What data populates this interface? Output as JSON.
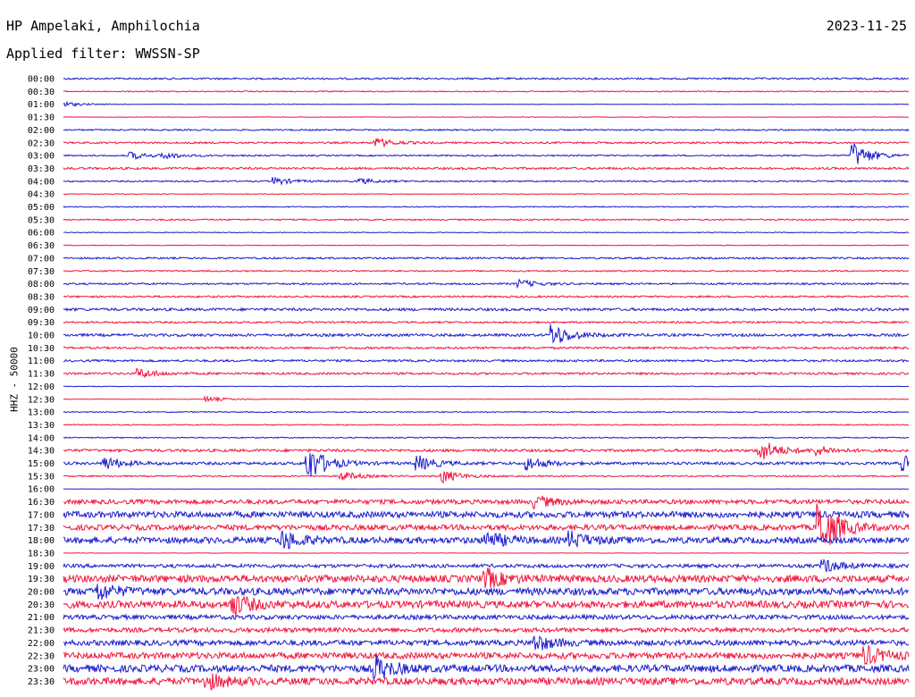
{
  "header": {
    "station": "HP Ampelaki, Amphilochia",
    "date": "2023-11-25",
    "filter": "Applied filter: WWSSN-SP"
  },
  "colors": {
    "trace_a": "#1a1acc",
    "trace_b": "#f0153d"
  },
  "chart_data": {
    "type": "line",
    "subtype": "helicorder",
    "ylabel": "HHZ - 50000",
    "row_labels": [
      "00:00",
      "00:30",
      "01:00",
      "01:30",
      "02:00",
      "02:30",
      "03:00",
      "03:30",
      "04:00",
      "04:30",
      "05:00",
      "05:30",
      "06:00",
      "06:30",
      "07:00",
      "07:30",
      "08:00",
      "08:30",
      "09:00",
      "09:30",
      "10:00",
      "10:30",
      "11:00",
      "11:30",
      "12:00",
      "12:30",
      "13:00",
      "13:30",
      "14:00",
      "14:30",
      "15:00",
      "15:30",
      "16:00",
      "16:30",
      "17:00",
      "17:30",
      "18:00",
      "18:30",
      "19:00",
      "19:30",
      "20:00",
      "20:30",
      "21:00",
      "21:30",
      "22:00",
      "22:30",
      "23:00",
      "23:30"
    ],
    "noise_level": [
      1,
      0.6,
      0.3,
      0.3,
      0.8,
      1,
      0.8,
      1.2,
      0.8,
      0.4,
      0.6,
      0.8,
      0.4,
      0.4,
      1,
      0.8,
      1,
      1,
      1.5,
      1,
      1.5,
      1.2,
      1.2,
      1.2,
      0.3,
      0.3,
      0.6,
      0.6,
      0.6,
      1.5,
      1.5,
      0.8,
      0.2,
      2.5,
      3.5,
      3,
      3.5,
      0.2,
      2,
      4,
      4,
      4,
      2.5,
      2.5,
      3,
      3.5,
      4,
      4
    ],
    "events": [
      {
        "row": 2,
        "pos": 0.0,
        "amp": 3
      },
      {
        "row": 5,
        "pos": 0.37,
        "amp": 5
      },
      {
        "row": 6,
        "pos": 0.08,
        "amp": 4
      },
      {
        "row": 6,
        "pos": 0.12,
        "amp": 3
      },
      {
        "row": 6,
        "pos": 0.935,
        "amp": 14
      },
      {
        "row": 8,
        "pos": 0.25,
        "amp": 4
      },
      {
        "row": 8,
        "pos": 0.35,
        "amp": 3
      },
      {
        "row": 16,
        "pos": 0.54,
        "amp": 4
      },
      {
        "row": 20,
        "pos": 0.58,
        "amp": 12
      },
      {
        "row": 23,
        "pos": 0.09,
        "amp": 5
      },
      {
        "row": 25,
        "pos": 0.17,
        "amp": 3
      },
      {
        "row": 29,
        "pos": 0.825,
        "amp": 12
      },
      {
        "row": 29,
        "pos": 0.89,
        "amp": 5
      },
      {
        "row": 30,
        "pos": 0.05,
        "amp": 7
      },
      {
        "row": 30,
        "pos": 0.29,
        "amp": 20
      },
      {
        "row": 30,
        "pos": 0.42,
        "amp": 8
      },
      {
        "row": 30,
        "pos": 0.55,
        "amp": 7
      },
      {
        "row": 30,
        "pos": 0.995,
        "amp": 8
      },
      {
        "row": 31,
        "pos": 0.33,
        "amp": 5
      },
      {
        "row": 31,
        "pos": 0.45,
        "amp": 7
      },
      {
        "row": 33,
        "pos": 0.56,
        "amp": 6
      },
      {
        "row": 35,
        "pos": 0.895,
        "amp": 30
      },
      {
        "row": 36,
        "pos": 0.26,
        "amp": 10
      },
      {
        "row": 36,
        "pos": 0.5,
        "amp": 9
      },
      {
        "row": 36,
        "pos": 0.6,
        "amp": 8
      },
      {
        "row": 38,
        "pos": 0.9,
        "amp": 7
      },
      {
        "row": 39,
        "pos": 0.5,
        "amp": 10
      },
      {
        "row": 40,
        "pos": 0.04,
        "amp": 9
      },
      {
        "row": 41,
        "pos": 0.2,
        "amp": 12
      },
      {
        "row": 44,
        "pos": 0.56,
        "amp": 8
      },
      {
        "row": 45,
        "pos": 0.95,
        "amp": 9
      },
      {
        "row": 46,
        "pos": 0.37,
        "amp": 12
      },
      {
        "row": 47,
        "pos": 0.17,
        "amp": 8
      }
    ]
  }
}
